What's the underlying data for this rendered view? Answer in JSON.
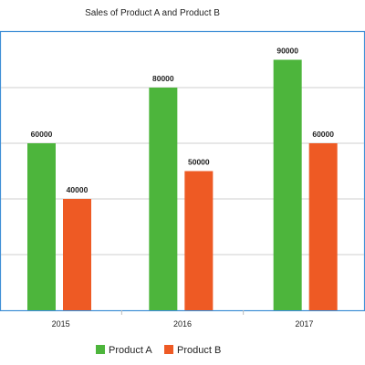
{
  "chart_data": {
    "type": "bar",
    "title": "Sales of Product A and Product B",
    "xlabel": "",
    "ylabel": "",
    "categories": [
      "2015",
      "2016",
      "2017"
    ],
    "series": [
      {
        "name": "Product A",
        "color": "#4db53c",
        "values": [
          60000,
          80000,
          90000
        ]
      },
      {
        "name": "Product B",
        "color": "#ee5a24",
        "values": [
          40000,
          50000,
          60000
        ]
      }
    ],
    "ylim": [
      0,
      100000
    ],
    "yticks": [
      0,
      20000,
      40000,
      60000,
      80000,
      100000
    ],
    "grid": true,
    "tick_labels_y_visible": false,
    "legend_position": "bottom",
    "data_labels": true
  },
  "colors": {
    "frame": "#3f8fd6",
    "grid": "#cfcfcf",
    "axis": "#bbbbbb"
  }
}
